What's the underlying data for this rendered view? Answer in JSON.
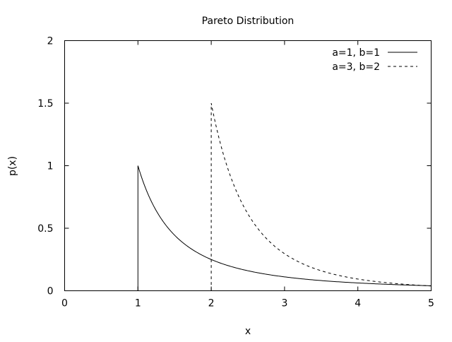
{
  "chart_data": {
    "type": "line",
    "title": "Pareto Distribution",
    "xlabel": "x",
    "ylabel": "p(x)",
    "xlim": [
      0,
      5
    ],
    "ylim": [
      0,
      2
    ],
    "x_ticks": [
      "0",
      "1",
      "2",
      "3",
      "4",
      "5"
    ],
    "y_ticks": [
      "0",
      "0.5",
      "1",
      "1.5",
      "2"
    ],
    "grid": false,
    "legend_position": "top-right",
    "series": [
      {
        "name": "a=1, b=1",
        "style": "solid",
        "color": "#000000",
        "x": [
          0,
          1,
          1,
          1.25,
          1.5,
          1.75,
          2,
          2.5,
          3,
          3.5,
          4,
          4.5,
          5
        ],
        "y": [
          0,
          0,
          1,
          0.64,
          0.444,
          0.327,
          0.25,
          0.16,
          0.111,
          0.082,
          0.0625,
          0.049,
          0.04
        ]
      },
      {
        "name": "a=3, b=2",
        "style": "dashed",
        "color": "#000000",
        "x": [
          0,
          2,
          2,
          2.25,
          2.5,
          2.75,
          3,
          3.25,
          3.5,
          4,
          4.5,
          5
        ],
        "y": [
          0,
          0,
          1.5,
          1.054,
          0.768,
          0.577,
          0.444,
          0.35,
          0.28,
          0.1875,
          0.132,
          0.096
        ]
      }
    ]
  }
}
